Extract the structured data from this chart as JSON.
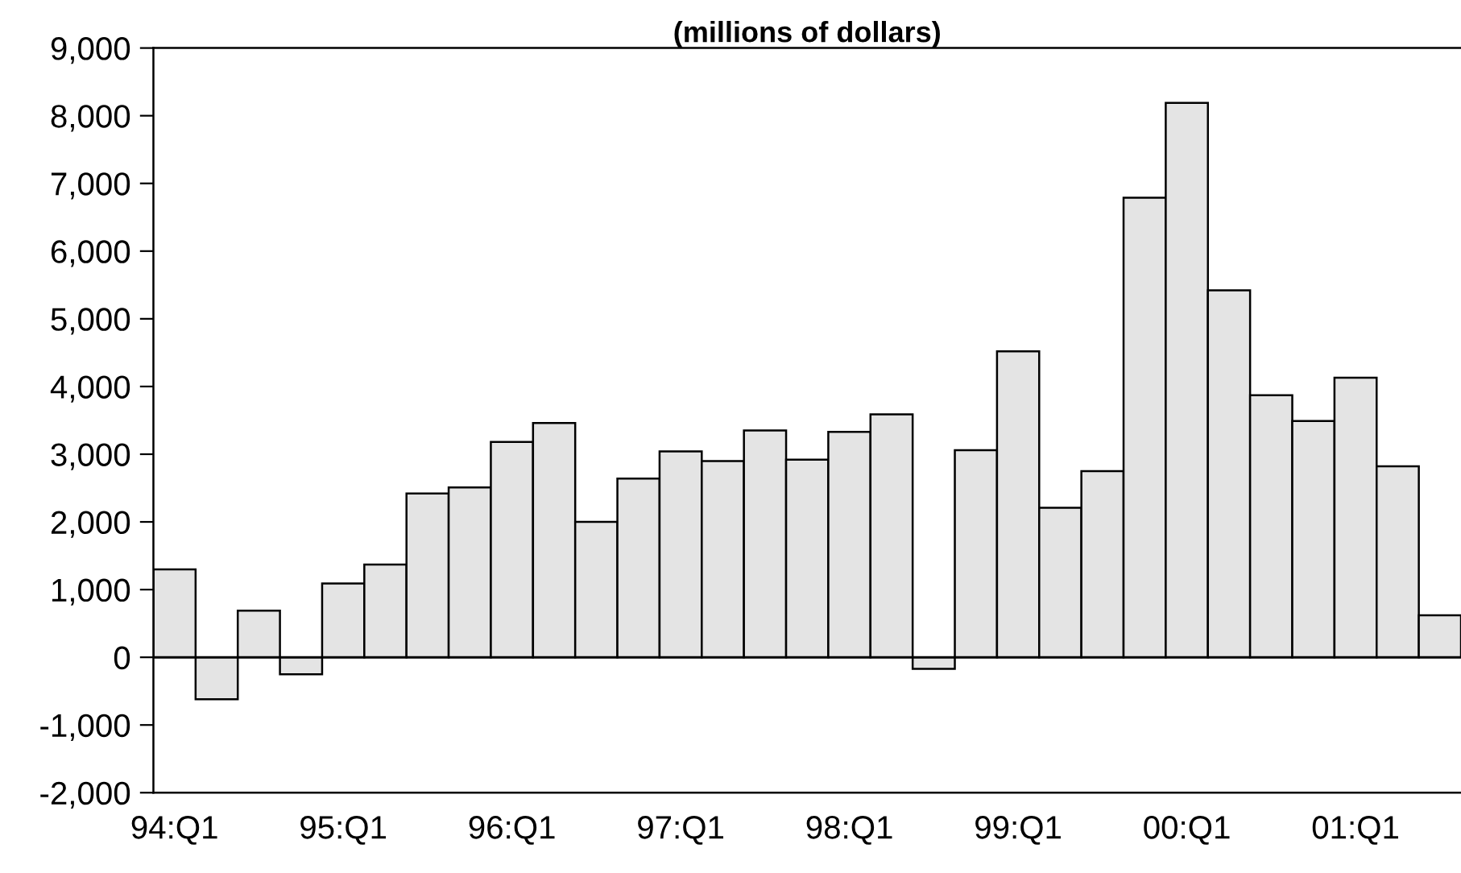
{
  "chart_data": {
    "type": "bar",
    "title": "(millions of dollars)",
    "categories": [
      "94:Q1",
      null,
      null,
      null,
      "95:Q1",
      null,
      null,
      null,
      "96:Q1",
      null,
      null,
      null,
      "97:Q1",
      null,
      null,
      null,
      "98:Q1",
      null,
      null,
      null,
      "99:Q1",
      null,
      null,
      null,
      "00:Q1",
      null,
      null,
      null,
      "01:Q1",
      null,
      null
    ],
    "values": [
      1300,
      -620,
      690,
      -250,
      1090,
      1370,
      2420,
      2510,
      3180,
      3460,
      2000,
      2640,
      3040,
      2900,
      3350,
      2920,
      3330,
      3590,
      -170,
      3060,
      4520,
      2210,
      2750,
      6790,
      8190,
      5420,
      3870,
      3490,
      4130,
      2820,
      620
    ],
    "color": "#e4e4e4",
    "ylim": [
      -2000,
      9000
    ],
    "yticks": [
      {
        "value": -2000,
        "label": "-2,000"
      },
      {
        "value": -1000,
        "label": "-1,000"
      },
      0,
      {
        "value": 1000,
        "label": "1,000"
      },
      {
        "value": 2000,
        "label": "2,000"
      },
      {
        "value": 3000,
        "label": "3,000"
      },
      {
        "value": 4000,
        "label": "4,000"
      },
      {
        "value": 5000,
        "label": "5,000"
      },
      {
        "value": 6000,
        "label": "6,000"
      },
      {
        "value": 7000,
        "label": "7,000"
      },
      {
        "value": 8000,
        "label": "8,000"
      },
      {
        "value": 9000,
        "label": "9,000"
      }
    ],
    "ref_lines": [
      {
        "axis": "y",
        "value": 0
      }
    ],
    "grid": false,
    "legend": false
  }
}
